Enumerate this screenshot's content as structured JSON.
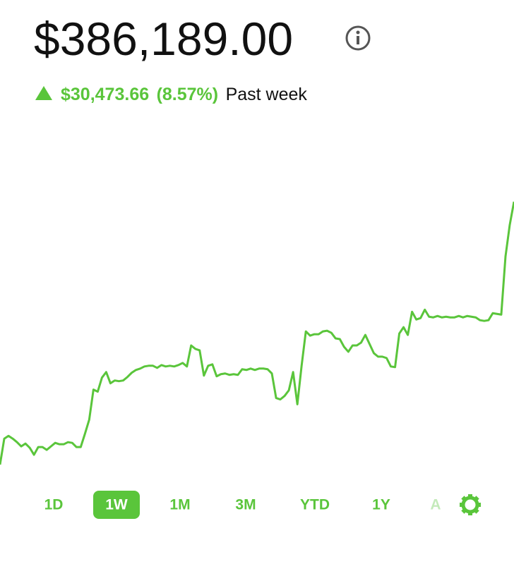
{
  "header": {
    "value": "$386,189.00",
    "change": "$30,473.66",
    "change_percent": "(8.57%)",
    "period": "Past week"
  },
  "chart_data": {
    "type": "line",
    "color": "#5ac53b",
    "ylim": [
      354000,
      396500
    ],
    "values": [
      355715,
      358723,
      359048,
      358723,
      358317,
      357829,
      358154,
      357667,
      356854,
      357748,
      357748,
      357423,
      357829,
      358236,
      358073,
      358073,
      358317,
      358236,
      357748,
      357748,
      359292,
      360917,
      364411,
      364168,
      365793,
      366443,
      365143,
      365468,
      365386,
      365468,
      365874,
      366362,
      366687,
      366849,
      367093,
      367174,
      367174,
      366930,
      367255,
      367093,
      367174,
      367093,
      367255,
      367499,
      367093,
      369531,
      369124,
      368962,
      366037,
      367174,
      367337,
      365955,
      366199,
      366280,
      366118,
      366199,
      366118,
      366768,
      366687,
      366849,
      366687,
      366849,
      366849,
      366768,
      366280,
      363436,
      363274,
      363680,
      364330,
      366443,
      362705,
      367174,
      371156,
      370668,
      370831,
      370831,
      371156,
      371237,
      370993,
      370343,
      370262,
      369368,
      368799,
      369531,
      369531,
      369856,
      370750,
      369693,
      368637,
      368231,
      368231,
      368068,
      367093,
      367012,
      370912,
      371643,
      370750,
      373431,
      372537,
      372700,
      373675,
      372862,
      372781,
      372944,
      372781,
      372862,
      372781,
      372781,
      372944,
      372781,
      372944,
      372862,
      372781,
      372456,
      372375,
      372456,
      373269,
      373187,
      373106,
      379851,
      383507,
      386189
    ]
  },
  "ranges": [
    "1D",
    "1W",
    "1M",
    "3M",
    "YTD",
    "1Y",
    "A"
  ],
  "selected_range": 1
}
